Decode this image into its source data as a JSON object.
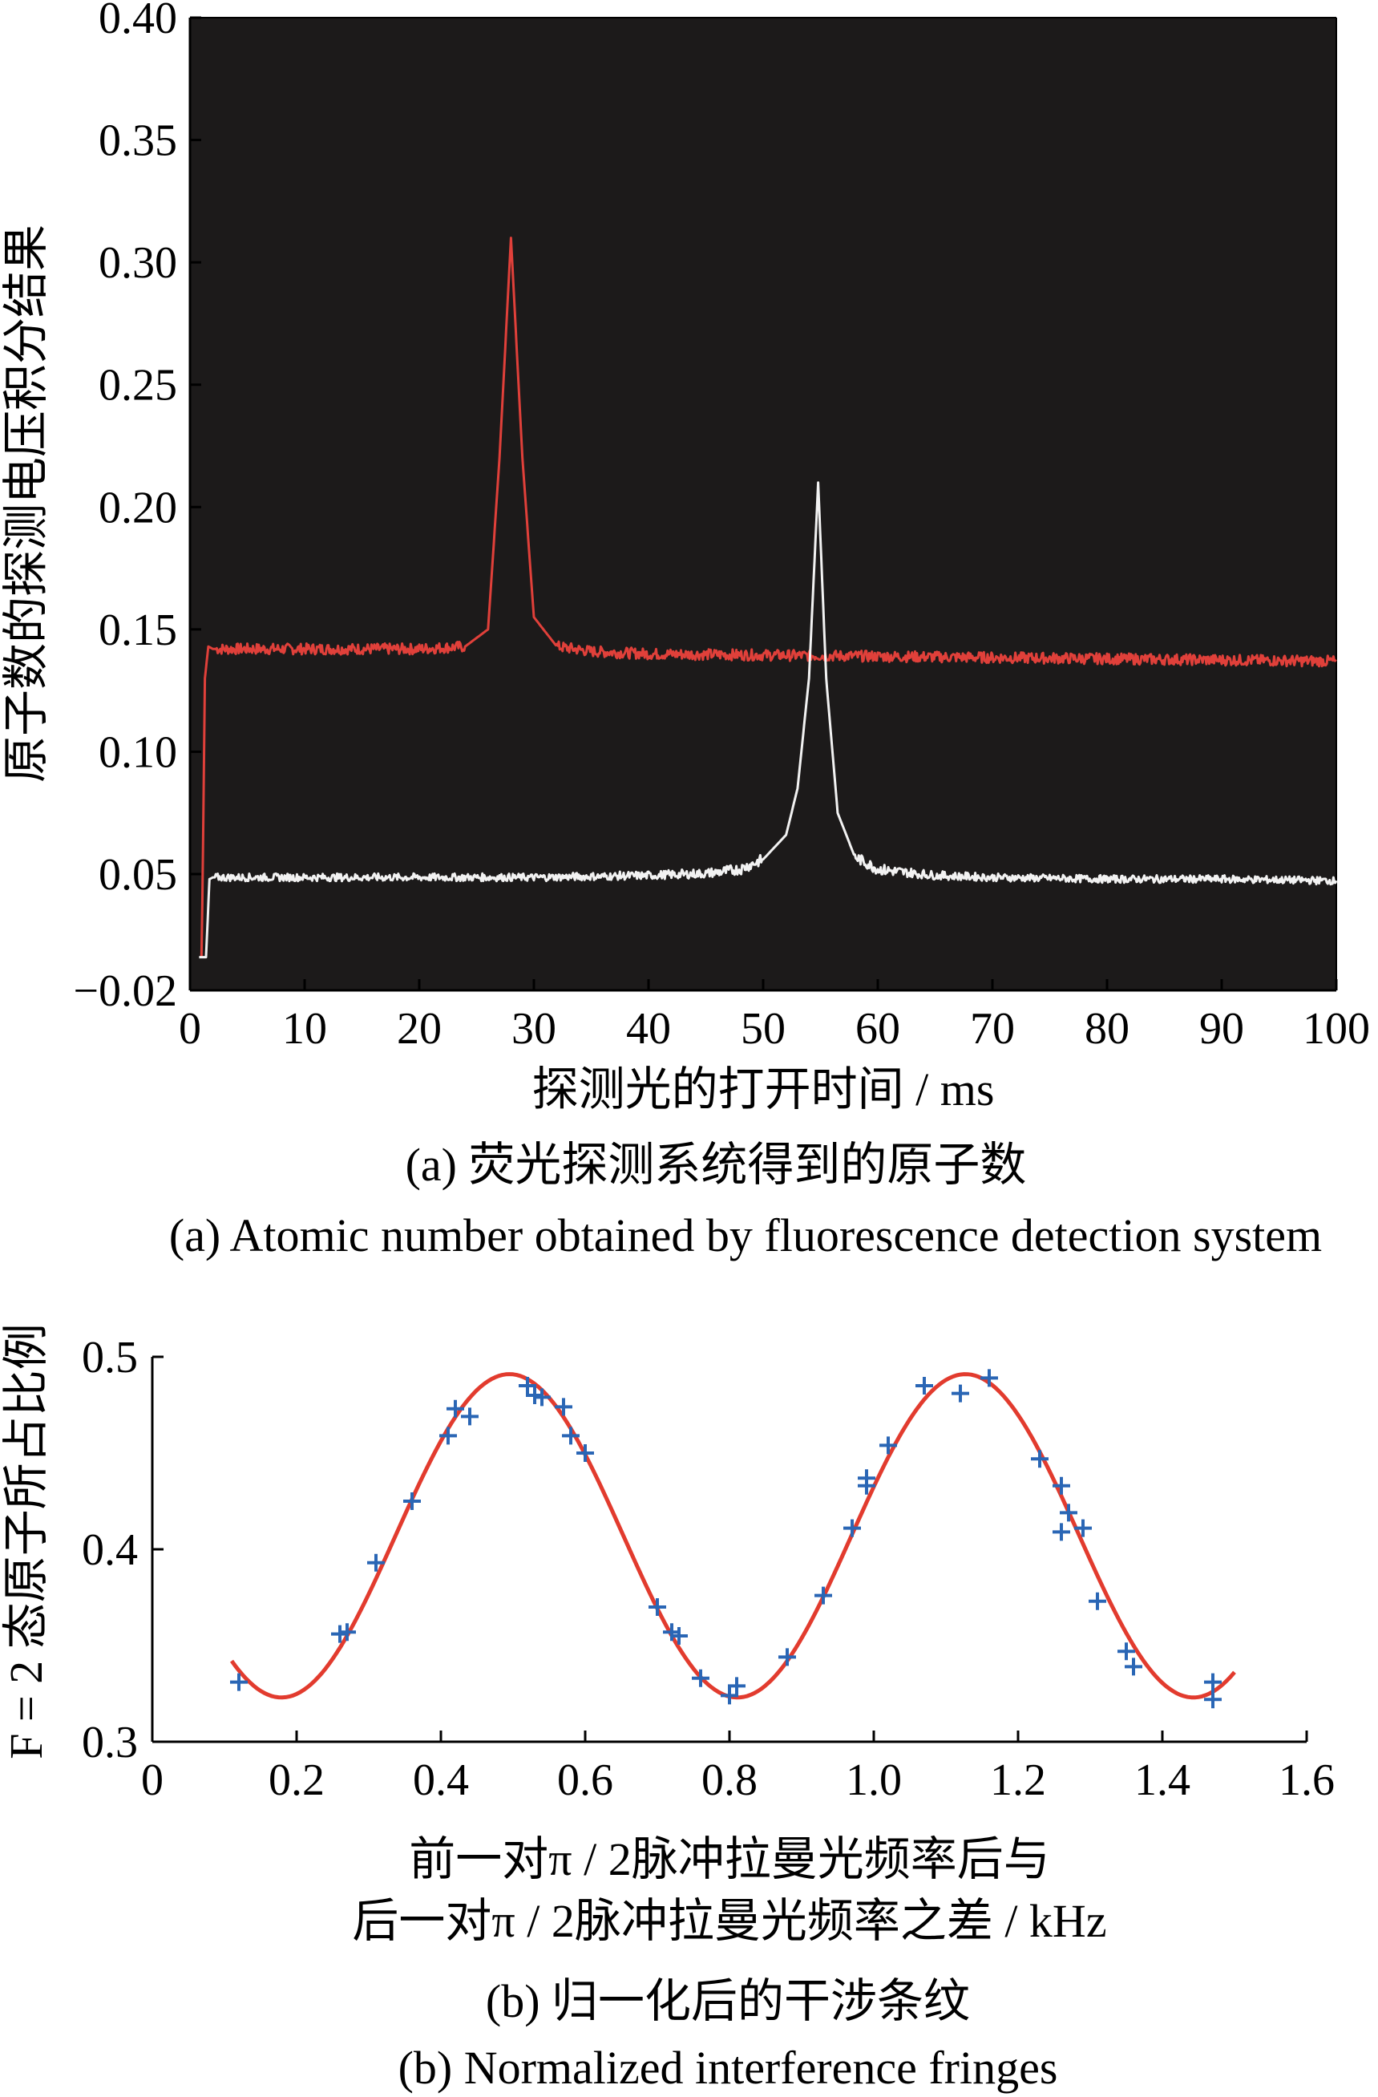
{
  "chart_data": [
    {
      "type": "line",
      "background_color": "#1c1a1a",
      "ylabel": "原子数的探测电压积分结果",
      "xlabel": "探测光的打开时间 / ms",
      "caption_cn": "(a) 荧光探测系统得到的原子数",
      "caption_en": "(a) Atomic number obtained by fluorescence detection system",
      "xlim": [
        0,
        100
      ],
      "ylim": [
        -0.02,
        0.4
      ],
      "y_axis_note": "non-uniform: -0.02 printed directly below 0.05",
      "xticks": [
        "0",
        "10",
        "20",
        "30",
        "40",
        "50",
        "60",
        "70",
        "80",
        "90",
        "100"
      ],
      "yticks": [
        "−0.02",
        "0.05",
        "0.10",
        "0.15",
        "0.20",
        "0.25",
        "0.30",
        "0.35",
        "0.40"
      ],
      "grid": false,
      "series": [
        {
          "color": "#e0403a",
          "x": [
            1.0,
            1.3,
            1.6,
            2,
            10,
            20,
            24,
            26,
            27,
            28,
            29,
            30,
            32,
            35,
            40,
            60,
            80,
            100
          ],
          "y": [
            0.0,
            0.13,
            0.143,
            0.142,
            0.142,
            0.142,
            0.143,
            0.15,
            0.22,
            0.31,
            0.22,
            0.155,
            0.143,
            0.141,
            0.14,
            0.139,
            0.138,
            0.137
          ]
        },
        {
          "color": "#f2f2f2",
          "x": [
            0.8,
            1.4,
            1.7,
            2,
            10,
            20,
            30,
            40,
            45,
            48,
            50,
            52,
            53,
            54,
            54.8,
            55.5,
            56.5,
            58,
            60,
            65,
            70,
            80,
            90,
            100
          ],
          "y": [
            0.0,
            0.0,
            0.047,
            0.048,
            0.048,
            0.048,
            0.048,
            0.049,
            0.05,
            0.052,
            0.056,
            0.066,
            0.085,
            0.13,
            0.21,
            0.13,
            0.075,
            0.057,
            0.052,
            0.049,
            0.048,
            0.047,
            0.047,
            0.046
          ]
        }
      ]
    },
    {
      "type": "scatter",
      "ylabel": "F = 2 态原子所占比例",
      "xlabel_line1": "前一对π / 2脉冲拉曼光频率后与",
      "xlabel_line2": "后一对π / 2脉冲拉曼光频率之差 / kHz",
      "caption_cn": "(b) 归一化后的干涉条纹",
      "caption_en": "(b) Normalized interference fringes",
      "xlim": [
        0,
        1.6
      ],
      "ylim": [
        0.3,
        0.5
      ],
      "xticks": [
        "0",
        "0.2",
        "0.4",
        "0.6",
        "0.8",
        "1.0",
        "1.2",
        "1.4",
        "1.6"
      ],
      "yticks": [
        "0.3",
        "0.4",
        "0.5"
      ],
      "grid": false,
      "fit": {
        "color": "#e23b2e",
        "offset": 0.407,
        "amplitude": 0.084,
        "period": 0.632,
        "peak_x": 0.495,
        "x_range": [
          0.11,
          1.5
        ]
      },
      "points": {
        "color": "#2a66b5",
        "marker": "+",
        "x": [
          0.12,
          0.26,
          0.27,
          0.31,
          0.36,
          0.41,
          0.42,
          0.44,
          0.52,
          0.53,
          0.54,
          0.57,
          0.58,
          0.6,
          0.7,
          0.72,
          0.73,
          0.76,
          0.8,
          0.81,
          0.88,
          0.93,
          0.97,
          0.99,
          0.99,
          1.02,
          1.07,
          1.12,
          1.16,
          1.23,
          1.26,
          1.26,
          1.27,
          1.29,
          1.31,
          1.35,
          1.36,
          1.47,
          1.47
        ],
        "y": [
          0.331,
          0.356,
          0.357,
          0.393,
          0.425,
          0.459,
          0.473,
          0.469,
          0.485,
          0.48,
          0.479,
          0.474,
          0.459,
          0.45,
          0.37,
          0.357,
          0.355,
          0.333,
          0.324,
          0.329,
          0.344,
          0.376,
          0.411,
          0.433,
          0.437,
          0.454,
          0.485,
          0.481,
          0.489,
          0.447,
          0.433,
          0.409,
          0.419,
          0.411,
          0.373,
          0.347,
          0.339,
          0.322,
          0.331
        ]
      }
    }
  ]
}
